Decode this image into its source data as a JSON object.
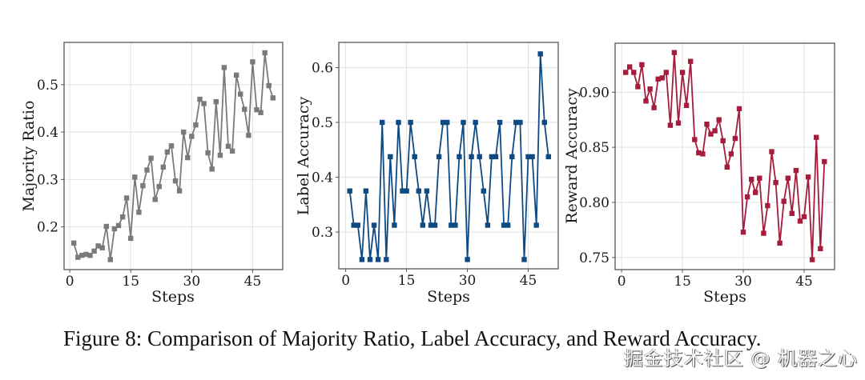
{
  "caption": "Figure 8: Comparison of Majority Ratio, Label Accuracy, and Reward Accuracy.",
  "watermark": "掘金技术社区 @ 机器之心",
  "chart_data": [
    {
      "type": "line",
      "title": "",
      "xlabel": "Steps",
      "ylabel": "Majority Ratio",
      "color": "#7a7a7a",
      "marker": "square",
      "grid": true,
      "xlim": [
        -1.4,
        52.4
      ],
      "ylim": [
        0.11,
        0.589
      ],
      "xticks": [
        0,
        15,
        30,
        45
      ],
      "xtick_labels": [
        "0",
        "15",
        "30",
        "45"
      ],
      "yticks": [
        0.2,
        0.3,
        0.4,
        0.5
      ],
      "ytick_labels": [
        "0.2",
        "0.3",
        "0.4",
        "0.5"
      ],
      "x": [
        1,
        2,
        3,
        4,
        5,
        6,
        7,
        8,
        9,
        10,
        11,
        12,
        13,
        14,
        15,
        16,
        17,
        18,
        19,
        20,
        21,
        22,
        23,
        24,
        25,
        26,
        27,
        28,
        29,
        30,
        31,
        32,
        33,
        34,
        35,
        36,
        37,
        38,
        39,
        40,
        41,
        42,
        43,
        44,
        45,
        46,
        47,
        48,
        49,
        50
      ],
      "y": [
        0.166,
        0.136,
        0.14,
        0.142,
        0.14,
        0.149,
        0.16,
        0.156,
        0.201,
        0.131,
        0.196,
        0.203,
        0.221,
        0.261,
        0.176,
        0.305,
        0.231,
        0.287,
        0.32,
        0.345,
        0.258,
        0.285,
        0.326,
        0.358,
        0.371,
        0.297,
        0.276,
        0.4,
        0.346,
        0.391,
        0.415,
        0.469,
        0.46,
        0.356,
        0.322,
        0.464,
        0.351,
        0.536,
        0.37,
        0.36,
        0.52,
        0.48,
        0.448,
        0.393,
        0.548,
        0.447,
        0.441,
        0.567,
        0.498,
        0.472
      ]
    },
    {
      "type": "line",
      "title": "",
      "xlabel": "Steps",
      "ylabel": "Label Accuracy",
      "color": "#0f4a82",
      "marker": "square",
      "grid": true,
      "xlim": [
        -1.7,
        52.4
      ],
      "ylim": [
        0.233,
        0.646
      ],
      "xticks": [
        0,
        15,
        30,
        45
      ],
      "xtick_labels": [
        "0",
        "15",
        "30",
        "45"
      ],
      "yticks": [
        0.3,
        0.4,
        0.5,
        0.6
      ],
      "ytick_labels": [
        "0.3",
        "0.4",
        "0.5",
        "0.6"
      ],
      "x": [
        1,
        2,
        3,
        4,
        5,
        6,
        7,
        8,
        9,
        10,
        11,
        12,
        13,
        14,
        15,
        16,
        17,
        18,
        19,
        20,
        21,
        22,
        23,
        24,
        25,
        26,
        27,
        28,
        29,
        30,
        31,
        32,
        33,
        34,
        35,
        36,
        37,
        38,
        39,
        40,
        41,
        42,
        43,
        44,
        45,
        46,
        47,
        48,
        49,
        50
      ],
      "y": [
        0.375,
        0.3125,
        0.3125,
        0.25,
        0.375,
        0.25,
        0.3125,
        0.25,
        0.5,
        0.25,
        0.4375,
        0.3125,
        0.5,
        0.375,
        0.375,
        0.5,
        0.4375,
        0.375,
        0.3125,
        0.375,
        0.3125,
        0.3125,
        0.4375,
        0.5,
        0.5,
        0.3125,
        0.3125,
        0.4375,
        0.5,
        0.25,
        0.4375,
        0.5,
        0.4375,
        0.375,
        0.3125,
        0.4375,
        0.4375,
        0.5,
        0.3125,
        0.3125,
        0.4375,
        0.5,
        0.5,
        0.25,
        0.4375,
        0.4375,
        0.3125,
        0.625,
        0.5,
        0.4375
      ]
    },
    {
      "type": "line",
      "title": "",
      "xlabel": "Steps",
      "ylabel": "Reward Accuracy",
      "color": "#a51c3c",
      "marker": "square",
      "grid": true,
      "xlim": [
        -1.6,
        52.5
      ],
      "ylim": [
        0.739,
        0.9445
      ],
      "xticks": [
        0,
        15,
        30,
        45
      ],
      "xtick_labels": [
        "0",
        "15",
        "30",
        "45"
      ],
      "yticks": [
        0.75,
        0.8,
        0.85,
        0.9
      ],
      "ytick_labels": [
        "0.75",
        "0.80",
        "0.85",
        "0.90"
      ],
      "x": [
        1,
        2,
        3,
        4,
        5,
        6,
        7,
        8,
        9,
        10,
        11,
        12,
        13,
        14,
        15,
        16,
        17,
        18,
        19,
        20,
        21,
        22,
        23,
        24,
        25,
        26,
        27,
        28,
        29,
        30,
        31,
        32,
        33,
        34,
        35,
        36,
        37,
        38,
        39,
        40,
        41,
        42,
        43,
        44,
        45,
        46,
        47,
        48,
        49,
        50
      ],
      "y": [
        0.918,
        0.923,
        0.918,
        0.905,
        0.925,
        0.892,
        0.903,
        0.886,
        0.912,
        0.913,
        0.918,
        0.87,
        0.936,
        0.872,
        0.918,
        0.888,
        0.928,
        0.857,
        0.845,
        0.844,
        0.871,
        0.862,
        0.865,
        0.875,
        0.856,
        0.832,
        0.844,
        0.858,
        0.885,
        0.773,
        0.805,
        0.821,
        0.809,
        0.822,
        0.772,
        0.797,
        0.846,
        0.818,
        0.763,
        0.801,
        0.822,
        0.79,
        0.829,
        0.783,
        0.787,
        0.823,
        0.748,
        0.859,
        0.758,
        0.837
      ]
    }
  ]
}
